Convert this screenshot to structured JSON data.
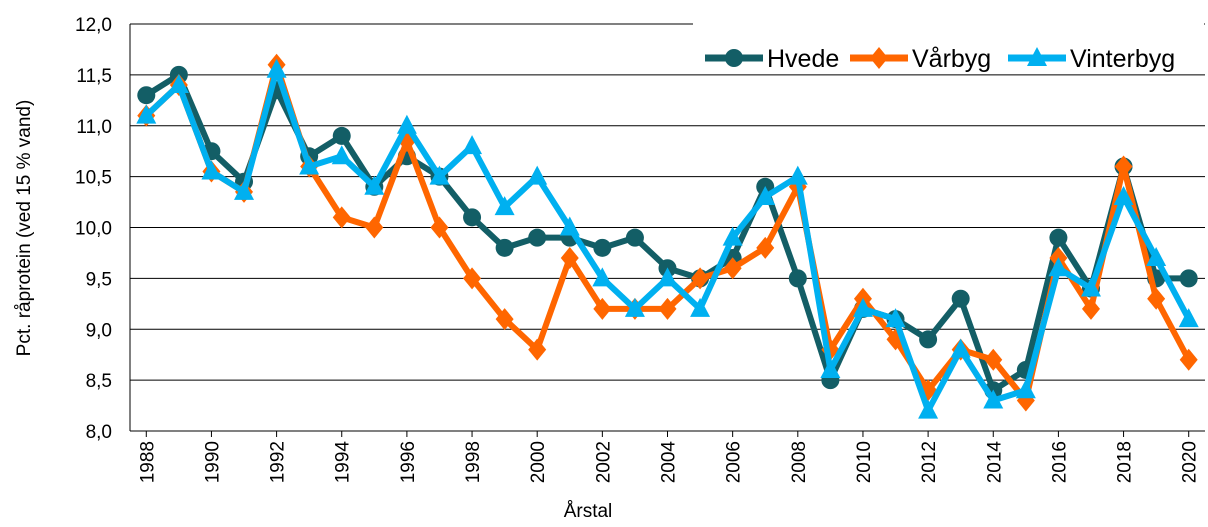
{
  "chart_data": {
    "type": "line",
    "x_label": "Årstal",
    "y_label": "Pct. råprotein (ved 15 % vand)",
    "x": [
      1988,
      1989,
      1990,
      1991,
      1992,
      1993,
      1994,
      1995,
      1996,
      1997,
      1998,
      1999,
      2000,
      2001,
      2002,
      2003,
      2004,
      2005,
      2006,
      2007,
      2008,
      2009,
      2010,
      2011,
      2012,
      2013,
      2014,
      2015,
      2016,
      2017,
      2018,
      2019,
      2020
    ],
    "xlim": [
      1987.5,
      2020.5
    ],
    "xticks": [
      1988,
      1990,
      1992,
      1994,
      1996,
      1998,
      2000,
      2002,
      2004,
      2006,
      2008,
      2010,
      2012,
      2014,
      2016,
      2018,
      2020
    ],
    "ylim": [
      8,
      12
    ],
    "yticks": [
      {
        "value": 8,
        "label": "8,0"
      },
      {
        "value": 8.5,
        "label": "8,5"
      },
      {
        "value": 9,
        "label": "9,0"
      },
      {
        "value": 9.5,
        "label": "9,5"
      },
      {
        "value": 10,
        "label": "10,0"
      },
      {
        "value": 10.5,
        "label": "10,5"
      },
      {
        "value": 11,
        "label": "11,0"
      },
      {
        "value": 11.5,
        "label": "11,5"
      },
      {
        "value": 12,
        "label": "12,0"
      }
    ],
    "grid": true,
    "legend": "upper right",
    "series": [
      {
        "name": "Hvede",
        "color": "#135e66",
        "marker": "circle",
        "values": [
          11.3,
          11.5,
          10.75,
          10.45,
          11.35,
          10.7,
          10.9,
          10.4,
          10.7,
          10.5,
          10.1,
          9.8,
          9.9,
          9.9,
          9.8,
          9.9,
          9.6,
          9.5,
          9.7,
          10.4,
          9.5,
          8.5,
          9.2,
          9.1,
          8.9,
          9.3,
          8.4,
          8.6,
          9.9,
          9.4,
          10.6,
          9.5,
          9.5
        ]
      },
      {
        "name": "Vårbyg",
        "color": "#ff6600",
        "marker": "diamond",
        "values": [
          11.1,
          11.4,
          10.55,
          10.35,
          11.6,
          10.6,
          10.1,
          10.0,
          10.85,
          10.0,
          9.5,
          9.1,
          8.8,
          9.7,
          9.2,
          9.2,
          9.2,
          9.5,
          9.6,
          9.8,
          10.4,
          8.8,
          9.3,
          8.9,
          8.4,
          8.8,
          8.7,
          8.3,
          9.7,
          9.2,
          10.6,
          9.3,
          8.7
        ]
      },
      {
        "name": "Vinterbyg",
        "color": "#00b0f0",
        "marker": "triangle",
        "values": [
          11.1,
          11.4,
          10.55,
          10.35,
          11.55,
          10.6,
          10.7,
          10.4,
          11.0,
          10.5,
          10.8,
          10.2,
          10.5,
          10.0,
          9.5,
          9.2,
          9.5,
          9.2,
          9.9,
          10.3,
          10.5,
          8.6,
          9.2,
          9.1,
          8.2,
          8.8,
          8.3,
          8.4,
          9.6,
          9.4,
          10.3,
          9.7,
          9.1
        ]
      }
    ]
  }
}
